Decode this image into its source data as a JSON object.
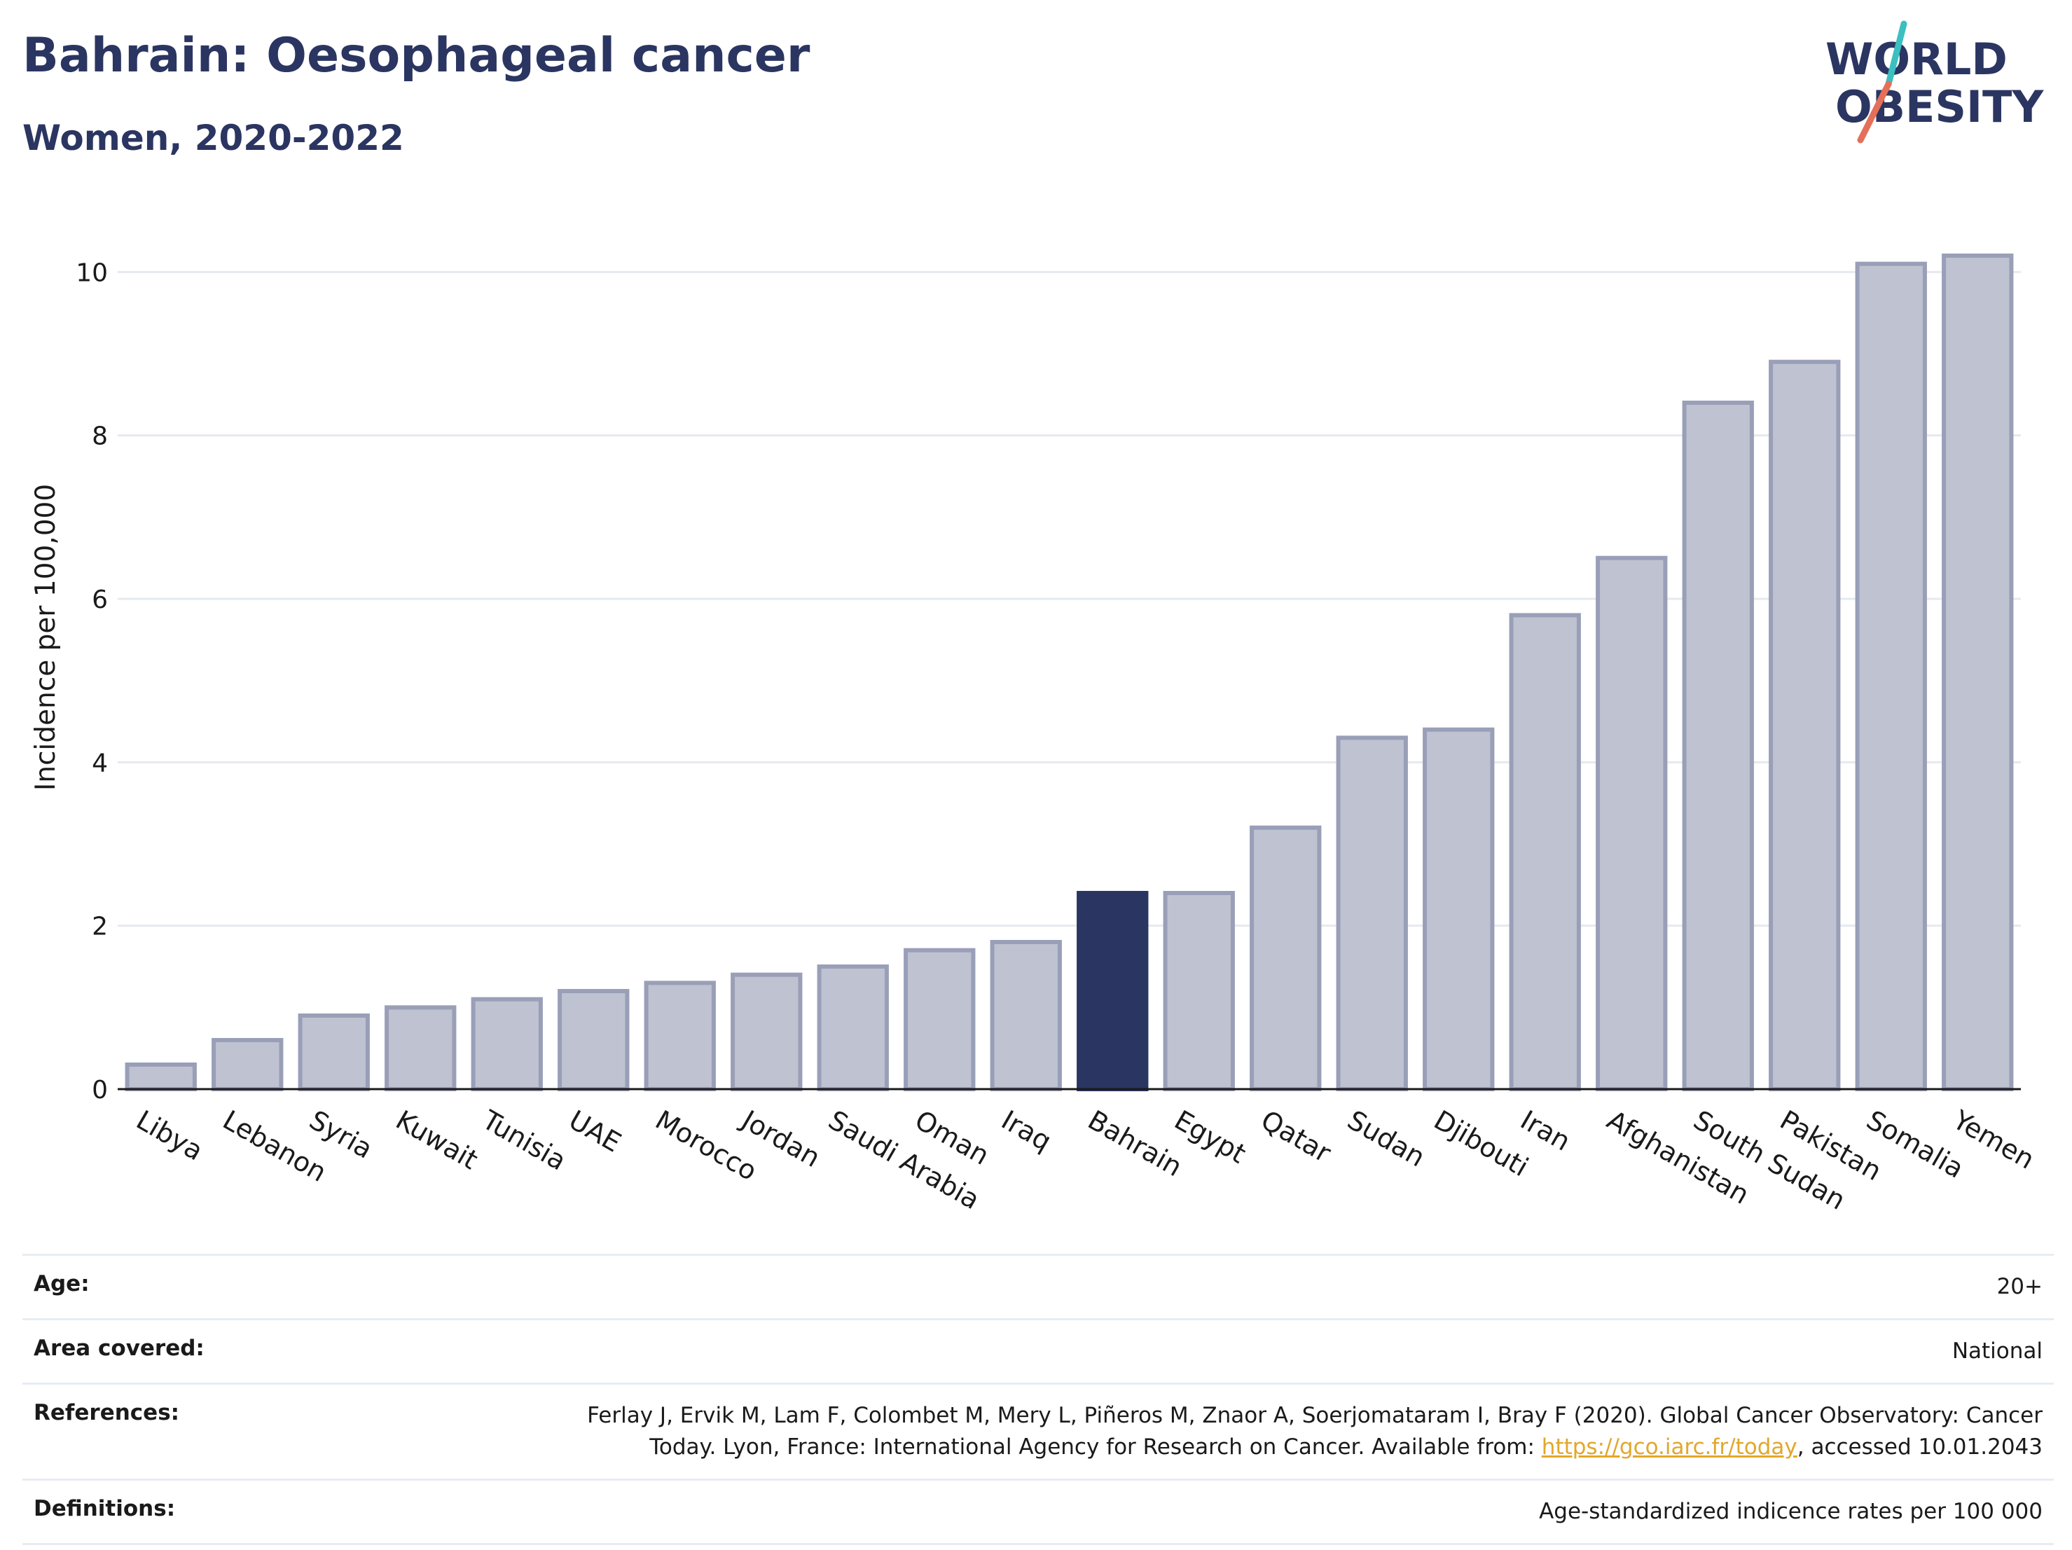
{
  "header": {
    "title": "Bahrain: Oesophageal cancer",
    "subtitle": "Women, 2020-2022"
  },
  "logo": {
    "line1": "WORLD",
    "line2": "OBESITY",
    "accent_teal": "#3bbfc0",
    "accent_coral": "#e4705a"
  },
  "colors": {
    "bar": "#bfc2d0",
    "bar_border": "#9a9fb8",
    "highlight": "#2b3561",
    "grid": "#e6e9ef",
    "text": "#2b3561"
  },
  "chart_data": {
    "type": "bar",
    "title": "Bahrain: Oesophageal cancer",
    "subtitle": "Women, 2020-2022",
    "xlabel": "",
    "ylabel": "Incidence per 100,000",
    "ylim": [
      0,
      10.5
    ],
    "yticks": [
      0,
      2,
      4,
      6,
      8,
      10
    ],
    "grid": true,
    "highlight_category": "Bahrain",
    "categories": [
      "Libya",
      "Lebanon",
      "Syria",
      "Kuwait",
      "Tunisia",
      "UAE",
      "Morocco",
      "Jordan",
      "Saudi Arabia",
      "Oman",
      "Iraq",
      "Bahrain",
      "Egypt",
      "Qatar",
      "Sudan",
      "Djibouti",
      "Iran",
      "Afghanistan",
      "South Sudan",
      "Pakistan",
      "Somalia",
      "Yemen"
    ],
    "values": [
      0.3,
      0.6,
      0.9,
      1.0,
      1.1,
      1.2,
      1.3,
      1.4,
      1.5,
      1.7,
      1.8,
      2.4,
      2.4,
      3.2,
      4.3,
      4.4,
      5.8,
      6.5,
      8.4,
      8.9,
      10.1,
      10.2
    ]
  },
  "info": {
    "age_label": "Age:",
    "age_value": "20+",
    "area_label": "Area covered:",
    "area_value": "National",
    "references_label": "References:",
    "references_text_1": "Ferlay J, Ervik M, Lam F, Colombet M, Mery L, Piñeros M, Znaor A, Soerjomataram I, Bray F (2020). Global Cancer Observatory: Cancer Today. Lyon, France: International Agency for Research on Cancer. Available from: ",
    "references_link": "https://gco.iarc.fr/today",
    "references_text_2": ", accessed 10.01.2043",
    "definitions_label": "Definitions:",
    "definitions_value": "Age-standardized indicence rates per 100 000"
  }
}
